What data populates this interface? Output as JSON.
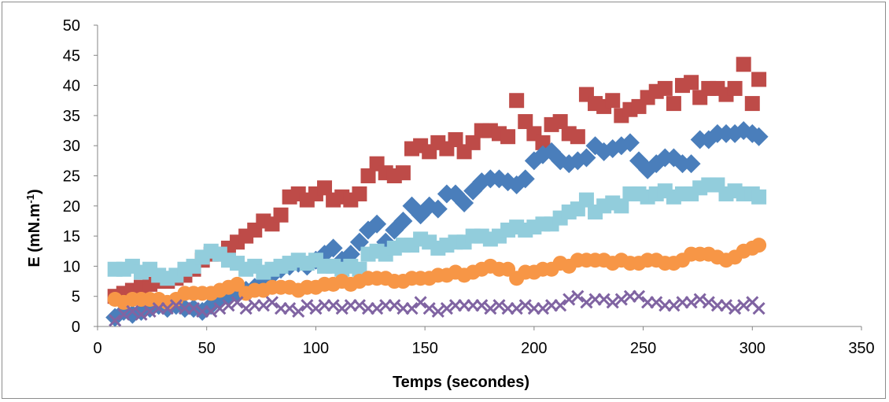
{
  "chart_data": {
    "type": "scatter",
    "title": "",
    "xlabel": "Temps (secondes)",
    "ylabel_main": "E (mN.m",
    "ylabel_sup": "-1",
    "ylabel_end": ")",
    "xlim": [
      0,
      350
    ],
    "ylim": [
      0,
      50
    ],
    "xticks": [
      "0",
      "50",
      "100",
      "150",
      "200",
      "250",
      "300",
      "350"
    ],
    "yticks": [
      "0",
      "5",
      "10",
      "15",
      "20",
      "25",
      "30",
      "35",
      "40",
      "45",
      "50"
    ],
    "grid": false,
    "legend": "none",
    "series": [
      {
        "marker": "square",
        "color": "#be4b48",
        "x": [
          8,
          12,
          16,
          20,
          24,
          28,
          32,
          36,
          40,
          44,
          48,
          52,
          56,
          60,
          64,
          68,
          72,
          76,
          80,
          84,
          88,
          92,
          96,
          100,
          104,
          108,
          112,
          116,
          120,
          124,
          128,
          132,
          136,
          140,
          144,
          148,
          152,
          156,
          160,
          164,
          168,
          172,
          176,
          180,
          184,
          188,
          192,
          196,
          200,
          204,
          208,
          212,
          216,
          220,
          224,
          228,
          232,
          236,
          240,
          244,
          248,
          252,
          256,
          260,
          264,
          268,
          272,
          276,
          280,
          284,
          288,
          292,
          296,
          300,
          303
        ],
        "y": [
          5,
          5.5,
          6,
          6.5,
          7,
          7.5,
          7.5,
          8,
          8.5,
          9.5,
          11,
          12,
          12,
          13,
          14,
          15,
          16,
          17.5,
          17,
          18.5,
          21.5,
          22,
          21,
          22,
          23,
          21,
          21.5,
          21,
          22,
          25,
          27,
          25.5,
          25,
          25.5,
          29.5,
          30,
          29,
          30.5,
          29.5,
          31,
          29,
          30.5,
          32.5,
          32.5,
          32,
          31.5,
          37.5,
          34,
          32,
          30.5,
          33.5,
          34,
          32,
          31.5,
          38.5,
          37,
          36.5,
          37.5,
          35,
          36,
          36.5,
          38,
          39,
          39.5,
          37,
          40,
          40.5,
          38,
          39.5,
          39.5,
          38.5,
          39.5,
          43.5,
          37,
          41
        ]
      },
      {
        "marker": "diamond",
        "color": "#4a7ebb",
        "x": [
          8,
          12,
          16,
          20,
          24,
          28,
          32,
          36,
          40,
          44,
          48,
          52,
          56,
          60,
          64,
          68,
          72,
          76,
          80,
          84,
          88,
          92,
          96,
          100,
          104,
          108,
          112,
          116,
          120,
          124,
          128,
          132,
          136,
          140,
          144,
          148,
          152,
          156,
          160,
          164,
          168,
          172,
          176,
          180,
          184,
          188,
          192,
          196,
          200,
          204,
          208,
          212,
          216,
          220,
          224,
          228,
          232,
          236,
          240,
          244,
          248,
          252,
          256,
          260,
          264,
          268,
          272,
          276,
          280,
          284,
          288,
          292,
          296,
          300,
          303
        ],
        "y": [
          1.5,
          2.5,
          2,
          2.5,
          3,
          3.5,
          3,
          3.5,
          3,
          3,
          2.5,
          3.5,
          4.5,
          5,
          5.5,
          6,
          6.5,
          7.5,
          8.5,
          9.5,
          10,
          10.5,
          10,
          11,
          12,
          13,
          11,
          12,
          14,
          16,
          17,
          14,
          16,
          17.5,
          20,
          18.5,
          20,
          19.5,
          22,
          22,
          20.5,
          22.5,
          24,
          24.5,
          24.5,
          24,
          23.5,
          24.5,
          27.5,
          28.5,
          29,
          27.5,
          27,
          27.5,
          28,
          30,
          29,
          29.5,
          30,
          30.5,
          27.5,
          26,
          27,
          28,
          28,
          27,
          27,
          31,
          31,
          32,
          32,
          32,
          32.5,
          32,
          31.5
        ]
      },
      {
        "marker": "square",
        "color": "#92cddc",
        "x": [
          8,
          12,
          16,
          20,
          24,
          28,
          32,
          36,
          40,
          44,
          48,
          52,
          56,
          60,
          64,
          68,
          72,
          76,
          80,
          84,
          88,
          92,
          96,
          100,
          104,
          108,
          112,
          116,
          120,
          124,
          128,
          132,
          136,
          140,
          144,
          148,
          152,
          156,
          160,
          164,
          168,
          172,
          176,
          180,
          184,
          188,
          192,
          196,
          200,
          204,
          208,
          212,
          216,
          220,
          224,
          228,
          232,
          236,
          240,
          244,
          248,
          252,
          256,
          260,
          264,
          268,
          272,
          276,
          280,
          284,
          288,
          292,
          296,
          300,
          303
        ],
        "y": [
          9.5,
          9.5,
          10,
          9,
          9.5,
          8.5,
          8,
          8.5,
          9.5,
          10,
          11.5,
          12.5,
          12,
          11,
          10.5,
          9.5,
          10,
          9,
          9.5,
          10,
          10.5,
          11,
          10.5,
          11,
          10,
          10,
          9.5,
          10,
          9.5,
          12,
          12.5,
          12,
          13,
          13.5,
          13.5,
          14.5,
          14,
          13,
          13.5,
          14,
          14,
          15,
          15,
          14.5,
          15,
          16,
          16.5,
          16,
          16.5,
          17,
          17,
          18,
          19,
          19.5,
          21,
          19,
          20,
          20.5,
          20,
          22,
          22,
          21.5,
          22,
          22.5,
          21.5,
          22,
          22,
          23,
          23.5,
          23.5,
          22,
          22.5,
          22,
          22,
          21.5
        ]
      },
      {
        "marker": "circle",
        "color": "#f79646",
        "x": [
          8,
          12,
          16,
          20,
          24,
          28,
          32,
          36,
          40,
          44,
          48,
          52,
          56,
          60,
          64,
          68,
          72,
          76,
          80,
          84,
          88,
          92,
          96,
          100,
          104,
          108,
          112,
          116,
          120,
          124,
          128,
          132,
          136,
          140,
          144,
          148,
          152,
          156,
          160,
          164,
          168,
          172,
          176,
          180,
          184,
          188,
          192,
          196,
          200,
          204,
          208,
          212,
          216,
          220,
          224,
          228,
          232,
          236,
          240,
          244,
          248,
          252,
          256,
          260,
          264,
          268,
          272,
          276,
          280,
          284,
          288,
          292,
          296,
          300,
          303
        ],
        "y": [
          4.5,
          4,
          4.5,
          4.5,
          4.5,
          4.5,
          4,
          4.5,
          5.5,
          5.5,
          5.5,
          5.5,
          6,
          6.5,
          7,
          5.5,
          6,
          6,
          6.5,
          6.5,
          6.5,
          6,
          6.5,
          6.5,
          7,
          7,
          7.5,
          7,
          7.5,
          8,
          8,
          8,
          7.5,
          7.5,
          8,
          8,
          8,
          8.5,
          8.5,
          9,
          8.5,
          9,
          9.5,
          10,
          9.5,
          9.5,
          8,
          9,
          9,
          9.5,
          9.5,
          10.5,
          10,
          11,
          11,
          11,
          11,
          10.5,
          11,
          10.5,
          10.5,
          11,
          11,
          10.5,
          10.5,
          11,
          12,
          12,
          12,
          11.5,
          11,
          11.5,
          12.5,
          13,
          13.5
        ]
      },
      {
        "marker": "x",
        "color": "#8064a2",
        "x": [
          8,
          12,
          16,
          20,
          24,
          28,
          32,
          36,
          40,
          44,
          48,
          52,
          56,
          60,
          64,
          68,
          72,
          76,
          80,
          84,
          88,
          92,
          96,
          100,
          104,
          108,
          112,
          116,
          120,
          124,
          128,
          132,
          136,
          140,
          144,
          148,
          152,
          156,
          160,
          164,
          168,
          172,
          176,
          180,
          184,
          188,
          192,
          196,
          200,
          204,
          208,
          212,
          216,
          220,
          224,
          228,
          232,
          236,
          240,
          244,
          248,
          252,
          256,
          260,
          264,
          268,
          272,
          276,
          280,
          284,
          288,
          292,
          296,
          300,
          303
        ],
        "y": [
          1,
          2,
          2.5,
          2,
          2.5,
          3,
          3,
          3.5,
          3,
          3,
          2.5,
          2.5,
          3,
          3.5,
          4,
          3,
          3.5,
          3.5,
          4,
          3,
          3,
          2.5,
          3.5,
          3,
          3.5,
          3.5,
          3,
          3.5,
          3.5,
          3,
          3,
          3.5,
          3.5,
          3,
          3,
          4,
          3,
          2.5,
          3,
          3.5,
          3.5,
          3.5,
          3.5,
          3,
          3.5,
          3,
          3,
          3.5,
          3,
          3,
          3.5,
          3.5,
          4.5,
          5,
          4,
          4.5,
          4.5,
          4,
          4.5,
          5,
          5,
          4,
          4,
          3.5,
          3.5,
          4,
          4,
          4.5,
          4,
          3.5,
          3.5,
          3,
          3.5,
          4,
          3
        ]
      }
    ]
  }
}
